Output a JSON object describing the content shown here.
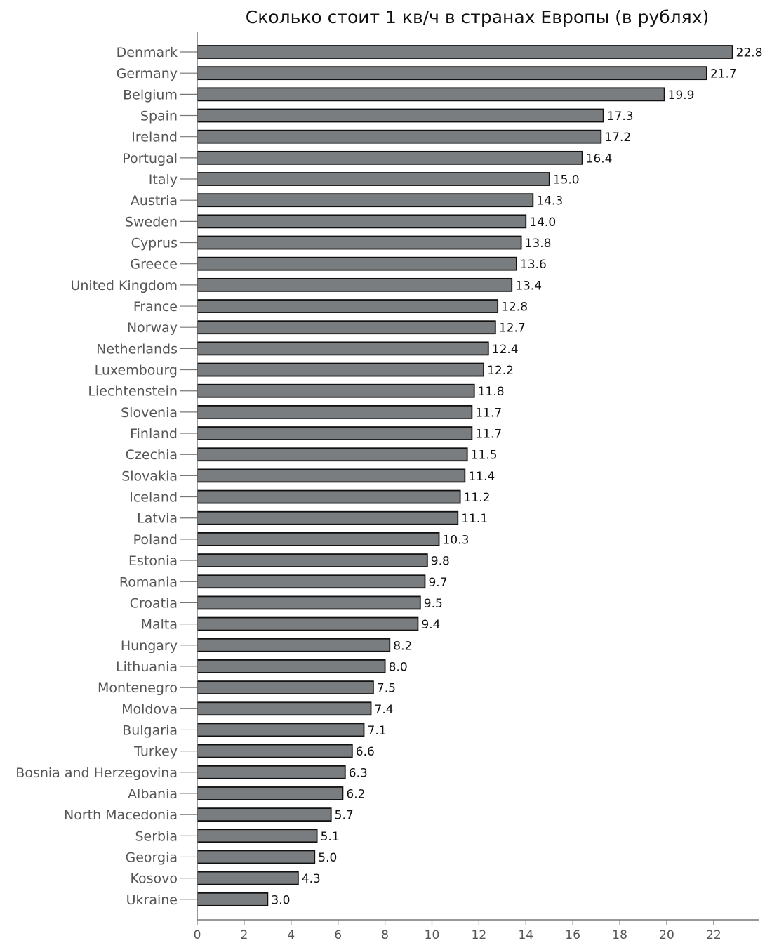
{
  "chart_data": {
    "type": "bar",
    "orientation": "horizontal",
    "title": "Сколько стоит 1 кв/ч в странах Европы (в рублях)",
    "xlabel": "",
    "ylabel": "",
    "xlim": [
      0,
      23.9
    ],
    "xticks": [
      0,
      2,
      4,
      6,
      8,
      10,
      12,
      14,
      16,
      18,
      20,
      22
    ],
    "grid": false,
    "bar_color": "#7a7d7f",
    "edge_color": "#111111",
    "categories": [
      "Denmark",
      "Germany",
      "Belgium",
      "Spain",
      "Ireland",
      "Portugal",
      "Italy",
      "Austria",
      "Sweden",
      "Cyprus",
      "Greece",
      "United Kingdom",
      "France",
      "Norway",
      "Netherlands",
      "Luxembourg",
      "Liechtenstein",
      "Slovenia",
      "Finland",
      "Czechia",
      "Slovakia",
      "Iceland",
      "Latvia",
      "Poland",
      "Estonia",
      "Romania",
      "Croatia",
      "Malta",
      "Hungary",
      "Lithuania",
      "Montenegro",
      "Moldova",
      "Bulgaria",
      "Turkey",
      "Bosnia and Herzegovina",
      "Albania",
      "North Macedonia",
      "Serbia",
      "Georgia",
      "Kosovo",
      "Ukraine"
    ],
    "values": [
      22.8,
      21.7,
      19.9,
      17.3,
      17.2,
      16.4,
      15.0,
      14.3,
      14.0,
      13.8,
      13.6,
      13.4,
      12.8,
      12.7,
      12.4,
      12.2,
      11.8,
      11.7,
      11.7,
      11.5,
      11.4,
      11.2,
      11.1,
      10.3,
      9.8,
      9.7,
      9.5,
      9.4,
      8.2,
      8.0,
      7.5,
      7.4,
      7.1,
      6.6,
      6.3,
      6.2,
      5.7,
      5.1,
      5.0,
      4.3,
      3.0
    ],
    "value_labels": [
      "22.8",
      "21.7",
      "19.9",
      "17.3",
      "17.2",
      "16.4",
      "15.0",
      "14.3",
      "14.0",
      "13.8",
      "13.6",
      "13.4",
      "12.8",
      "12.7",
      "12.4",
      "12.2",
      "11.8",
      "11.7",
      "11.7",
      "11.5",
      "11.4",
      "11.2",
      "11.1",
      "10.3",
      "9.8",
      "9.7",
      "9.5",
      "9.4",
      "8.2",
      "8.0",
      "7.5",
      "7.4",
      "7.1",
      "6.6",
      "6.3",
      "6.2",
      "5.7",
      "5.1",
      "5.0",
      "4.3",
      "3.0"
    ]
  }
}
